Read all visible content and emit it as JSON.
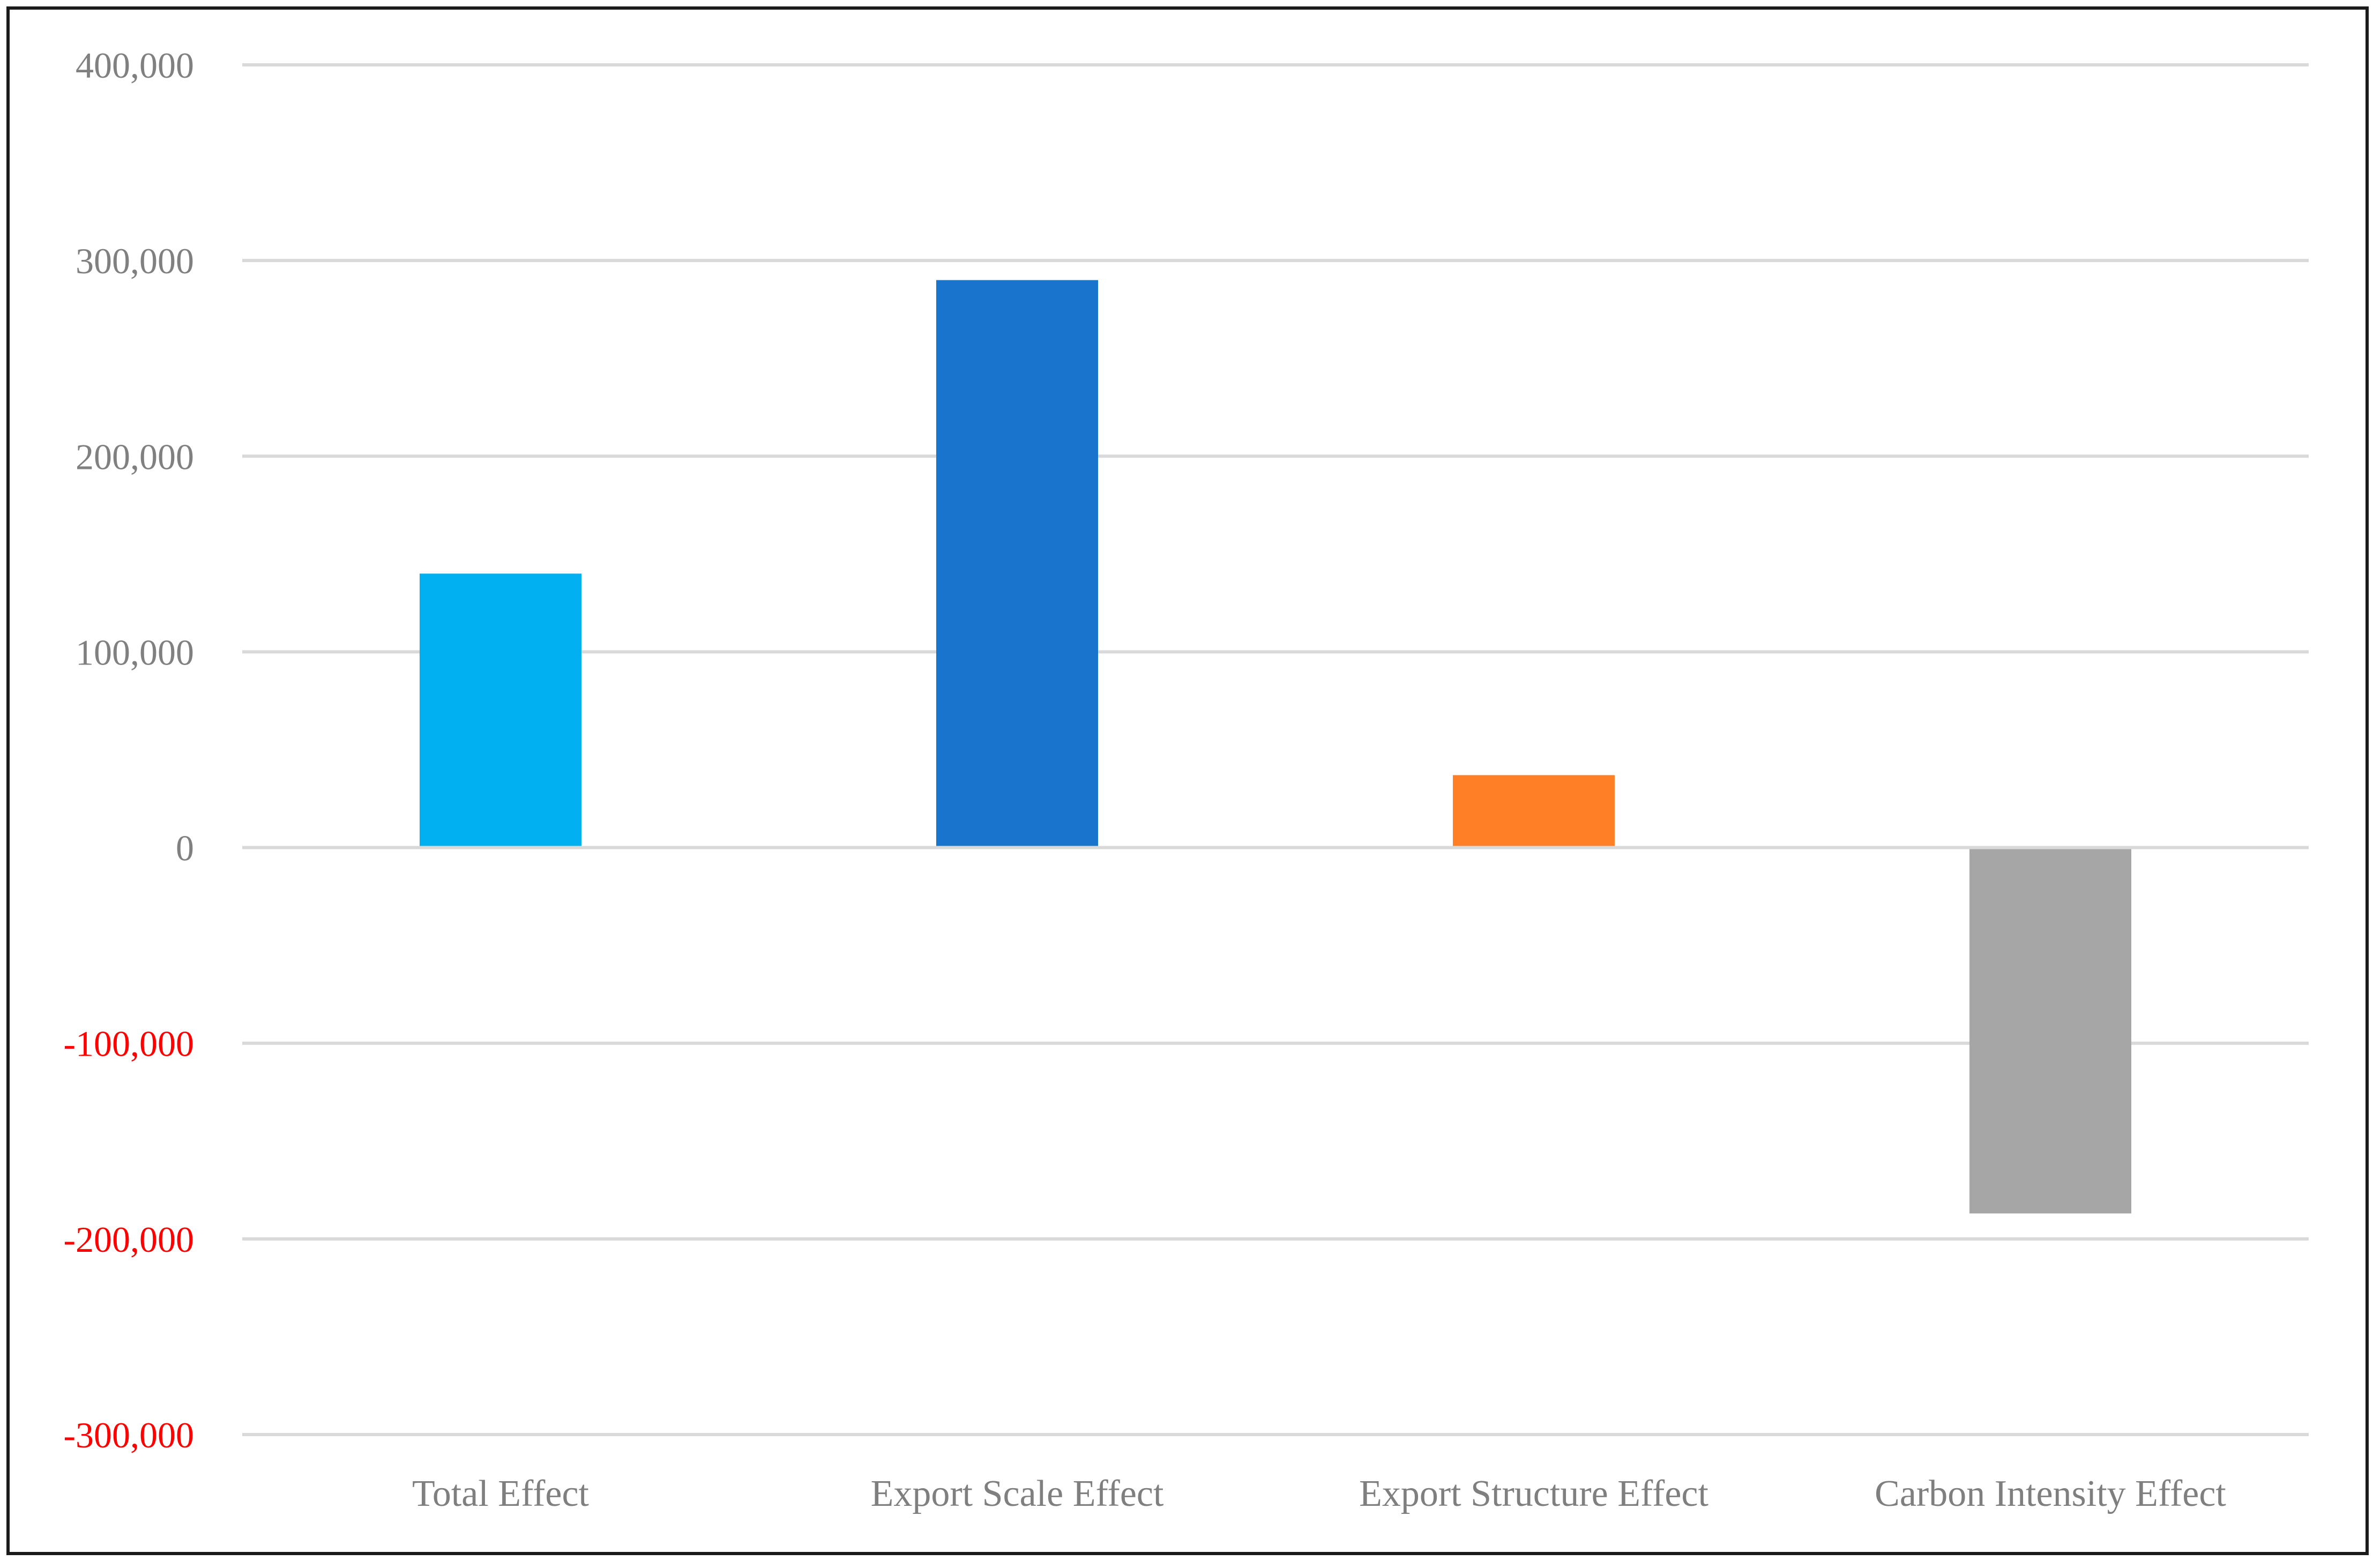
{
  "chart_data": {
    "type": "bar",
    "title": "",
    "xlabel": "",
    "ylabel": "",
    "categories": [
      "Total Effect",
      "Export Scale Effect",
      "Export Structure Effect",
      "Carbon Intensity Effect"
    ],
    "values": [
      140000,
      290000,
      37000,
      -187000
    ],
    "bar_colors": [
      "#00B0F0",
      "#1874CD",
      "#FF7F27",
      "#A6A6A6"
    ],
    "ylim": [
      -300000,
      400000
    ],
    "yticks": [
      400000,
      300000,
      200000,
      100000,
      0,
      -100000,
      -200000,
      -300000
    ],
    "ytick_labels": [
      "400,000",
      "300,000",
      "200,000",
      "100,000",
      "0",
      "-100,000",
      "-200,000",
      "-300,000"
    ],
    "positive_tick_color": "#808080",
    "negative_tick_color": "#FF0000",
    "grid": true,
    "gridline_color": "#D9D9D9",
    "legend": "none"
  }
}
